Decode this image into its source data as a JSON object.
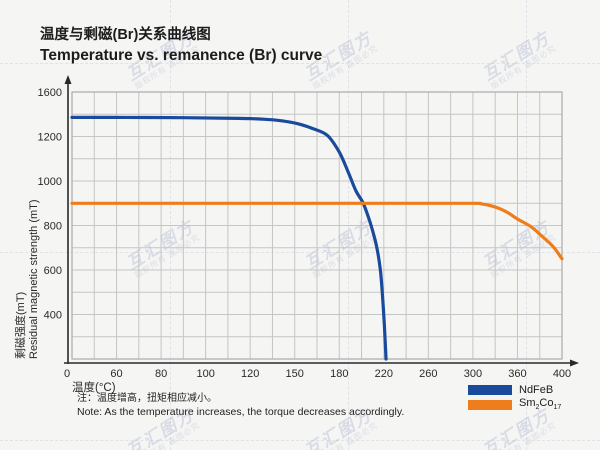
{
  "titles": {
    "zh": "温度与剩磁(Br)关系曲线图",
    "en": "Temperature vs. remanence (Br) curve"
  },
  "watermark": {
    "logo": "互汇图方",
    "tagline": "版权所有 盗图必究"
  },
  "chart_data": {
    "type": "line",
    "title": "Temperature vs. remanence (Br) curve",
    "xlabel_zh": "温度(°C)",
    "ylabel_zh": "剩磁强度(mT)",
    "ylabel_en": "Residual magnetic strength (mT)",
    "x_ticks": [
      0,
      60,
      80,
      100,
      120,
      150,
      180,
      220,
      260,
      300,
      360,
      400
    ],
    "y_ticks": [
      1600,
      1200,
      1000,
      800,
      600,
      400,
      0
    ],
    "grid": true,
    "legend_position": "bottom-right",
    "axis_color": "#2a2a2a",
    "grid_color": "#c5c5c5",
    "series": [
      {
        "name": "NdFeB",
        "color": "#1a4a9c",
        "points": [
          [
            0,
            1372
          ],
          [
            50,
            1372
          ],
          [
            90,
            1369
          ],
          [
            115,
            1363
          ],
          [
            130,
            1355
          ],
          [
            142,
            1340
          ],
          [
            152,
            1315
          ],
          [
            162,
            1272
          ],
          [
            172,
            1210
          ],
          [
            180,
            1130
          ],
          [
            188,
            1040
          ],
          [
            195,
            955
          ],
          [
            201,
            905
          ],
          [
            206,
            840
          ],
          [
            210,
            775
          ],
          [
            214,
            695
          ],
          [
            217,
            595
          ],
          [
            219,
            470
          ],
          [
            220.5,
            300
          ],
          [
            221.5,
            100
          ],
          [
            222,
            0
          ]
        ]
      },
      {
        "name": "Sm2Co17",
        "color": "#ee7d1c",
        "points": [
          [
            0,
            900
          ],
          [
            80,
            900
          ],
          [
            160,
            900
          ],
          [
            240,
            900
          ],
          [
            300,
            900
          ],
          [
            312,
            897
          ],
          [
            324,
            889
          ],
          [
            336,
            876
          ],
          [
            348,
            856
          ],
          [
            360,
            829
          ],
          [
            372,
            795
          ],
          [
            382,
            752
          ],
          [
            392,
            705
          ],
          [
            400,
            651
          ]
        ]
      }
    ]
  },
  "legend": {
    "items": [
      {
        "label": "NdFeB",
        "color": "#1a4a9c"
      },
      {
        "parts": {
          "base1": "Sm",
          "sub1": "2",
          "base2": "Co",
          "sub2": "17"
        },
        "color": "#ee7d1c"
      }
    ]
  },
  "notes": {
    "zh": "注：温度增高，扭矩相应减小。",
    "en": "Note: As the temperature increases, the torque decreases accordingly."
  }
}
